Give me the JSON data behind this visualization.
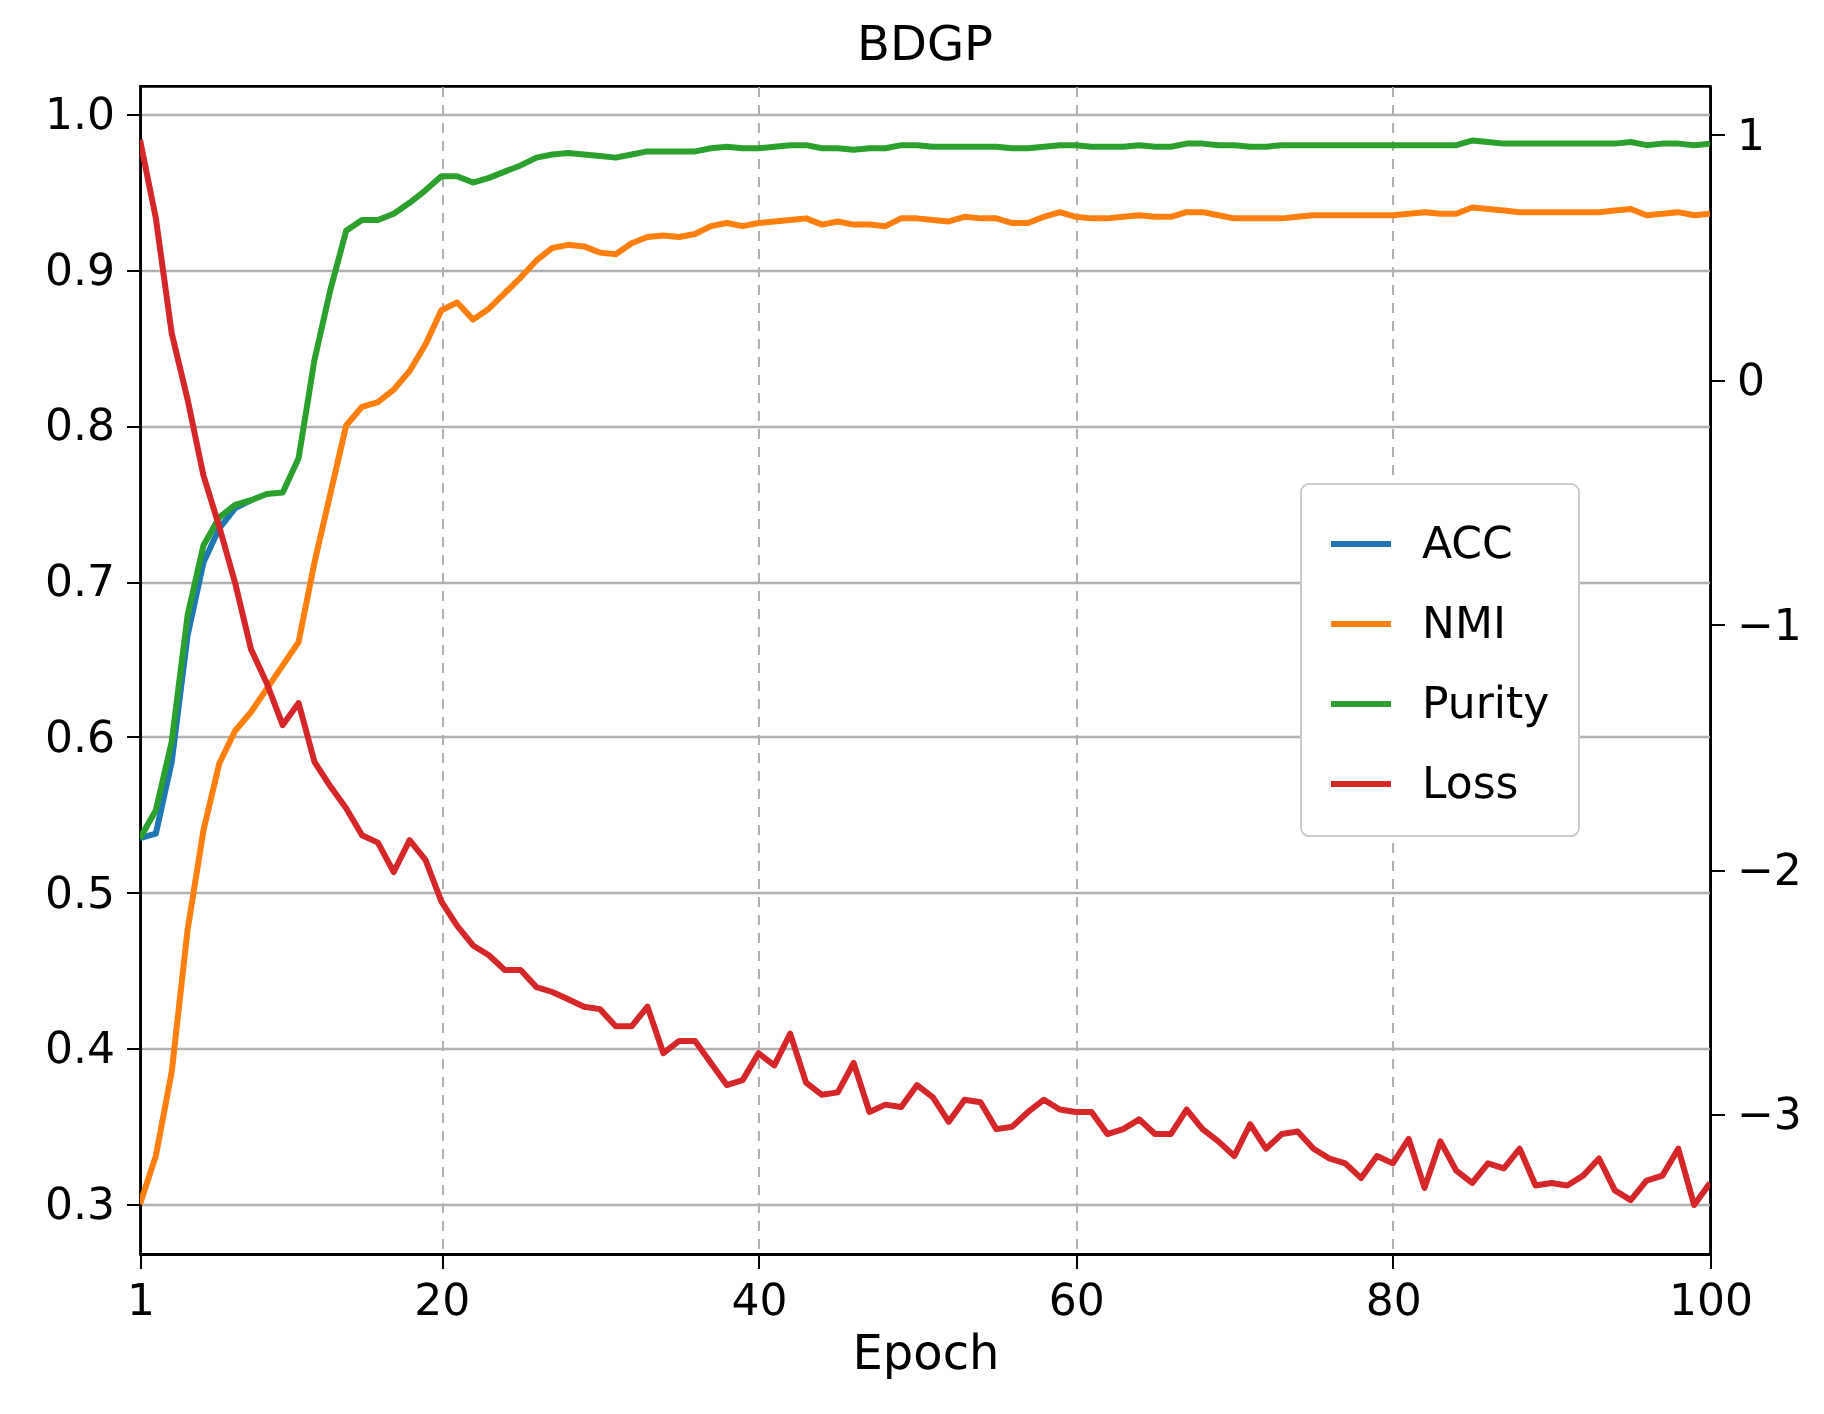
{
  "chart_data": {
    "type": "line",
    "title": "BDGP",
    "xlabel": "Epoch",
    "x": [
      1,
      2,
      3,
      4,
      5,
      6,
      7,
      8,
      9,
      10,
      11,
      12,
      13,
      14,
      15,
      16,
      17,
      18,
      19,
      20,
      21,
      22,
      23,
      24,
      25,
      26,
      27,
      28,
      29,
      30,
      31,
      32,
      33,
      34,
      35,
      36,
      37,
      38,
      39,
      40,
      41,
      42,
      43,
      44,
      45,
      46,
      47,
      48,
      49,
      50,
      51,
      52,
      53,
      54,
      55,
      56,
      57,
      58,
      59,
      60,
      61,
      62,
      63,
      64,
      65,
      66,
      67,
      68,
      69,
      70,
      71,
      72,
      73,
      74,
      75,
      76,
      77,
      78,
      79,
      80,
      81,
      82,
      83,
      84,
      85,
      86,
      87,
      88,
      89,
      90,
      91,
      92,
      93,
      94,
      95,
      96,
      97,
      98,
      99,
      100
    ],
    "series": [
      {
        "name": "ACC",
        "color": "#1f77b4",
        "values": [
          0.535,
          0.538,
          0.584,
          0.665,
          0.712,
          0.734,
          0.747,
          0.752,
          null,
          null,
          null,
          null,
          null,
          null,
          null,
          null,
          null,
          null,
          null,
          null,
          null,
          null,
          null,
          null,
          null,
          null,
          null,
          null,
          null,
          null,
          null,
          null,
          null,
          null,
          null,
          null,
          null,
          null,
          null,
          null,
          null,
          null,
          null,
          null,
          null,
          null,
          null,
          null,
          null,
          null,
          null,
          null,
          null,
          null,
          null,
          null,
          null,
          null,
          null,
          null,
          null,
          null,
          null,
          null,
          null,
          null,
          null,
          null,
          null,
          null,
          null,
          null,
          null,
          null,
          null,
          null,
          null,
          null,
          null,
          null,
          null,
          null,
          null,
          null,
          null,
          null,
          null,
          null,
          null,
          null,
          null,
          null,
          null,
          null,
          null,
          null,
          null,
          null,
          null,
          null
        ]
      },
      {
        "name": "NMI",
        "color": "#ff7f0e",
        "values": [
          0.3,
          0.331,
          0.385,
          0.476,
          0.54,
          0.583,
          0.604,
          0.616,
          0.631,
          0.646,
          0.661,
          0.712,
          0.756,
          0.8,
          0.812,
          0.815,
          0.823,
          0.835,
          0.852,
          0.874,
          0.879,
          0.868,
          0.875,
          0.885,
          0.895,
          0.906,
          0.914,
          0.916,
          0.915,
          0.911,
          0.91,
          0.917,
          0.921,
          0.922,
          0.921,
          0.923,
          0.928,
          0.93,
          0.928,
          0.93,
          0.931,
          0.932,
          0.933,
          0.929,
          0.931,
          0.929,
          0.929,
          0.928,
          0.933,
          0.933,
          0.932,
          0.931,
          0.934,
          0.933,
          0.933,
          0.93,
          0.93,
          0.934,
          0.937,
          0.934,
          0.933,
          0.933,
          0.934,
          0.935,
          0.934,
          0.934,
          0.937,
          0.937,
          0.935,
          0.933,
          0.933,
          0.933,
          0.933,
          0.934,
          0.935,
          0.935,
          0.935,
          0.935,
          0.935,
          0.935,
          0.936,
          0.937,
          0.936,
          0.936,
          0.94,
          0.939,
          0.938,
          0.937,
          0.937,
          0.937,
          0.937,
          0.937,
          0.937,
          0.938,
          0.939,
          0.935,
          0.936,
          0.937,
          0.935,
          0.936
        ]
      },
      {
        "name": "Purity",
        "color": "#2ca02c",
        "values": [
          0.535,
          0.553,
          0.597,
          0.678,
          0.723,
          0.741,
          0.749,
          0.752,
          0.756,
          0.757,
          0.779,
          0.842,
          0.887,
          0.925,
          0.932,
          0.932,
          0.936,
          0.943,
          0.951,
          0.96,
          0.96,
          0.956,
          0.959,
          0.963,
          0.967,
          0.972,
          0.974,
          0.975,
          0.974,
          0.973,
          0.972,
          0.974,
          0.976,
          0.976,
          0.976,
          0.976,
          0.978,
          0.979,
          0.978,
          0.978,
          0.979,
          0.98,
          0.98,
          0.978,
          0.978,
          0.977,
          0.978,
          0.978,
          0.98,
          0.98,
          0.979,
          0.979,
          0.979,
          0.979,
          0.979,
          0.978,
          0.978,
          0.979,
          0.98,
          0.98,
          0.979,
          0.979,
          0.979,
          0.98,
          0.979,
          0.979,
          0.981,
          0.981,
          0.98,
          0.98,
          0.979,
          0.979,
          0.98,
          0.98,
          0.98,
          0.98,
          0.98,
          0.98,
          0.98,
          0.98,
          0.98,
          0.98,
          0.98,
          0.98,
          0.983,
          0.982,
          0.981,
          0.981,
          0.981,
          0.981,
          0.981,
          0.981,
          0.981,
          0.981,
          0.982,
          0.98,
          0.981,
          0.981,
          0.98,
          0.981
        ]
      },
      {
        "name": "Loss",
        "color": "#d62728",
        "axis": "y2",
        "values": [
          0.98,
          0.66,
          0.19,
          -0.08,
          -0.39,
          -0.6,
          -0.83,
          -1.1,
          -1.24,
          -1.41,
          -1.32,
          -1.56,
          -1.66,
          -1.75,
          -1.86,
          -1.89,
          -2.01,
          -1.88,
          -1.96,
          -2.13,
          -2.23,
          -2.31,
          -2.35,
          -2.41,
          -2.41,
          -2.48,
          -2.5,
          -2.53,
          -2.56,
          -2.57,
          -2.64,
          -2.64,
          -2.56,
          -2.75,
          -2.7,
          -2.7,
          -2.79,
          -2.88,
          -2.86,
          -2.75,
          -2.8,
          -2.67,
          -2.87,
          -2.92,
          -2.91,
          -2.79,
          -2.99,
          -2.96,
          -2.97,
          -2.88,
          -2.93,
          -3.03,
          -2.94,
          -2.95,
          -3.06,
          -3.05,
          -2.99,
          -2.94,
          -2.98,
          -2.99,
          -2.99,
          -3.08,
          -3.06,
          -3.02,
          -3.08,
          -3.08,
          -2.98,
          -3.06,
          -3.11,
          -3.17,
          -3.04,
          -3.14,
          -3.08,
          -3.07,
          -3.14,
          -3.18,
          -3.2,
          -3.26,
          -3.17,
          -3.2,
          -3.1,
          -3.3,
          -3.11,
          -3.23,
          -3.28,
          -3.2,
          -3.22,
          -3.14,
          -3.29,
          -3.28,
          -3.29,
          -3.25,
          -3.18,
          -3.31,
          -3.35,
          -3.27,
          -3.25,
          -3.14,
          -3.37,
          -3.28
        ]
      }
    ],
    "xlim": [
      1,
      100
    ],
    "xticks": [
      1,
      20,
      40,
      60,
      80,
      100
    ],
    "ylim": [
      0.268,
      1.018
    ],
    "yticks": [
      0.3,
      0.4,
      0.5,
      0.6,
      0.7,
      0.8,
      0.9,
      {
        "value": 1,
        "label": "1.0"
      }
    ],
    "y2lim": [
      -3.57,
      1.2
    ],
    "y2ticks": [
      {
        "value": -3,
        "label": "−3"
      },
      {
        "value": -2,
        "label": "−2"
      },
      {
        "value": -1,
        "label": "−1"
      },
      0,
      1
    ],
    "grid": true,
    "legend": "center right",
    "line_style": "solid",
    "marker": "none"
  }
}
